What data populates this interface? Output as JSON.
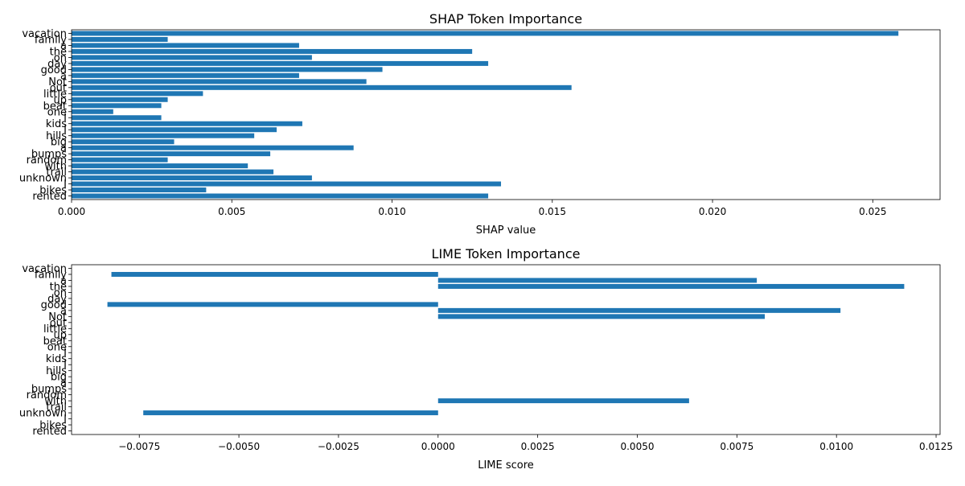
{
  "chart_data": [
    {
      "type": "bar",
      "orientation": "horizontal",
      "title": "SHAP Token Importance",
      "xlabel": "SHAP value",
      "ylabel": "",
      "xlim": [
        0,
        0.0271
      ],
      "xticks": [
        0.0,
        0.005,
        0.01,
        0.015,
        0.02,
        0.025
      ],
      "xtick_labels": [
        "0.000",
        "0.005",
        "0.010",
        "0.015",
        "0.020",
        "0.025"
      ],
      "grid": false,
      "bar_color": "#1f77b4",
      "categories": [
        "vacation",
        "family",
        "a",
        "the",
        "on",
        "day",
        "good",
        "a",
        "Not",
        "out",
        "little",
        "up",
        "beat",
        "one",
        "I",
        "kids",
        "I",
        "hills",
        "big",
        "a",
        "bumps",
        "random",
        "with",
        "trail",
        "unknown",
        "I",
        "bikes",
        "rented"
      ],
      "values": [
        0.0258,
        0.003,
        0.0071,
        0.0125,
        0.0075,
        0.013,
        0.0097,
        0.0071,
        0.0092,
        0.0156,
        0.0041,
        0.003,
        0.0028,
        0.0013,
        0.0028,
        0.0072,
        0.0064,
        0.0057,
        0.0032,
        0.0088,
        0.0062,
        0.003,
        0.0055,
        0.0063,
        0.0075,
        0.0134,
        0.0042,
        0.013
      ]
    },
    {
      "type": "bar",
      "orientation": "horizontal",
      "title": "LIME Token Importance",
      "xlabel": "LIME score",
      "ylabel": "",
      "xlim": [
        -0.0092,
        0.0126
      ],
      "xticks": [
        -0.0075,
        -0.005,
        -0.0025,
        0.0,
        0.0025,
        0.005,
        0.0075,
        0.01,
        0.0125
      ],
      "xtick_labels": [
        "−0.0075",
        "−0.0050",
        "−0.0025",
        "0.0000",
        "0.0025",
        "0.0050",
        "0.0075",
        "0.0100",
        "0.0125"
      ],
      "grid": false,
      "bar_color": "#1f77b4",
      "categories": [
        "vacation",
        "family",
        "a",
        "the",
        "on",
        "day",
        "good",
        "a",
        "Not",
        "out",
        "little",
        "up",
        "beat",
        "one",
        "I",
        "kids",
        "I",
        "hills",
        "big",
        "a",
        "bumps",
        "random",
        "with",
        "trail",
        "unknown",
        "I",
        "bikes",
        "rented"
      ],
      "values": [
        0,
        -0.0082,
        0.008,
        0.0117,
        0,
        0,
        -0.0083,
        0.0101,
        0.0082,
        0,
        0,
        0,
        0,
        0,
        0,
        0,
        0,
        0,
        0,
        0,
        0,
        0,
        0.0063,
        0,
        -0.0074,
        0,
        0,
        0
      ]
    }
  ]
}
